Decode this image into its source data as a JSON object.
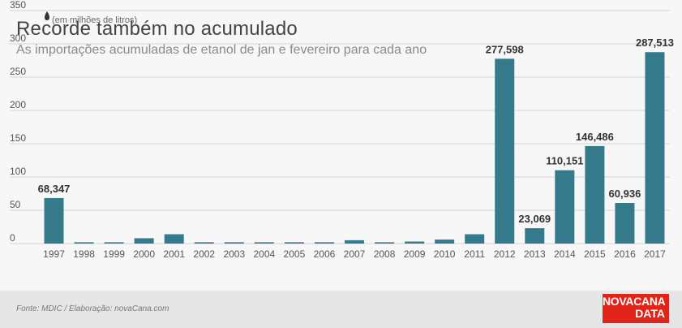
{
  "title": "Recorde também no acumulado",
  "subtitle": "As importações acumuladas de etanol de jan e fevereiro para cada ano",
  "unit_label": "(em milhões de litros)",
  "source": "Fonte: MDIC / Elaboração: novaCana.com",
  "logo": {
    "line1": "NOVACANA",
    "line2": "DATA"
  },
  "colors": {
    "bar": "#347a8b",
    "grid": "#d6d6d6",
    "axis_text": "#555555",
    "label_text": "#333333",
    "logo_bg": "#e2231a"
  },
  "chart_data": {
    "type": "bar",
    "title": "Recorde também no acumulado",
    "subtitle": "As importações acumuladas de etanol de jan e fevereiro para cada ano",
    "ylabel": "(em milhões de litros)",
    "ylim": [
      0,
      350
    ],
    "yticks": [
      0,
      50,
      100,
      150,
      200,
      250,
      300,
      350
    ],
    "grid": true,
    "categories": [
      "1997",
      "1998",
      "1999",
      "2000",
      "2001",
      "2002",
      "2003",
      "2004",
      "2005",
      "2006",
      "2007",
      "2008",
      "2009",
      "2010",
      "2011",
      "2012",
      "2013",
      "2014",
      "2015",
      "2016",
      "2017"
    ],
    "values": [
      68.347,
      2,
      2,
      8,
      14,
      2,
      2,
      2,
      2,
      2,
      5,
      2,
      3,
      6,
      14,
      277.598,
      23.069,
      110.151,
      146.486,
      60.936,
      287.513
    ],
    "data_labels": [
      "68,347",
      "",
      "",
      "",
      "",
      "",
      "",
      "",
      "",
      "",
      "",
      "",
      "",
      "",
      "",
      "277,598",
      "23,069",
      "110,151",
      "146,486",
      "60,936",
      "287,513"
    ]
  }
}
